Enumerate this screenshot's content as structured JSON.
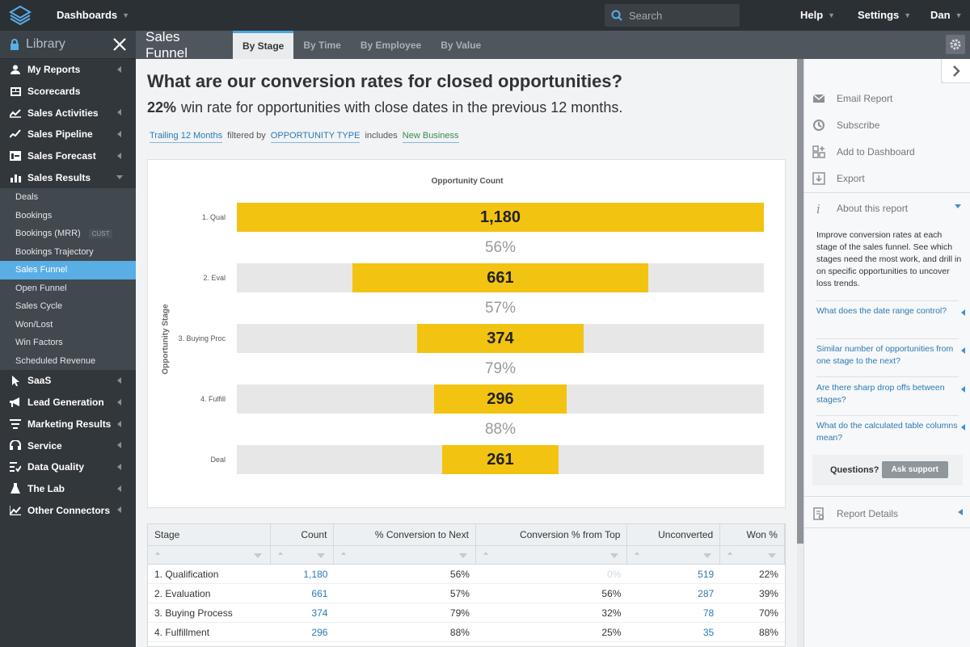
{
  "topbar": {
    "dashboards_label": "Dashboards",
    "search_placeholder": "Search",
    "help_label": "Help",
    "settings_label": "Settings",
    "user_label": "Dan"
  },
  "sidebar": {
    "library_label": "Library",
    "items": [
      {
        "label": "My Reports",
        "icon": "user-icon"
      },
      {
        "label": "Scorecards",
        "icon": "scorecard-icon"
      },
      {
        "label": "Sales Activities",
        "icon": "activity-icon"
      },
      {
        "label": "Sales Pipeline",
        "icon": "pipeline-icon"
      },
      {
        "label": "Sales Forecast",
        "icon": "forecast-icon"
      },
      {
        "label": "Sales Results",
        "icon": "results-icon"
      }
    ],
    "sub_items": [
      {
        "label": "Deals"
      },
      {
        "label": "Bookings"
      },
      {
        "label": "Bookings (MRR)",
        "badge": "CUST"
      },
      {
        "label": "Bookings Trajectory"
      },
      {
        "label": "Sales Funnel",
        "active": true
      },
      {
        "label": "Open Funnel"
      },
      {
        "label": "Sales Cycle"
      },
      {
        "label": "Won/Lost"
      },
      {
        "label": "Win Factors"
      },
      {
        "label": "Scheduled Revenue"
      }
    ],
    "items_bottom": [
      {
        "label": "SaaS",
        "icon": "pointer-icon"
      },
      {
        "label": "Lead Generation",
        "icon": "megaphone-icon"
      },
      {
        "label": "Marketing Results",
        "icon": "filter-icon"
      },
      {
        "label": "Service",
        "icon": "headset-icon"
      },
      {
        "label": "Data Quality",
        "icon": "checklist-icon"
      },
      {
        "label": "The Lab",
        "icon": "flask-icon"
      },
      {
        "label": "Other Connectors",
        "icon": "line-chart-icon"
      }
    ]
  },
  "tabbar": {
    "title": "Sales Funnel",
    "tabs": [
      "By Stage",
      "By Time",
      "By Employee",
      "By Value"
    ],
    "active_tab": "By Stage"
  },
  "report": {
    "question": "What are our conversion rates for closed opportunities?",
    "win_rate": "22%",
    "subtitle": "win rate for opportunities with close dates in the previous 12 months.",
    "filter_period": "Trailing 12 Months",
    "filter_by": "filtered by",
    "filter_field": "OPPORTUNITY TYPE",
    "filter_op": "includes",
    "filter_value": "New Business"
  },
  "chart_data": {
    "type": "bar",
    "title": "Opportunity Count",
    "xlabel": "",
    "ylabel": "Opportunity Stage",
    "categories": [
      "1. Qual",
      "2. Eval",
      "3. Buying Proc",
      "4. Fulfill",
      "Deal"
    ],
    "values": [
      1180,
      661,
      374,
      296,
      261
    ],
    "value_labels": [
      "1,180",
      "661",
      "374",
      "296",
      "261"
    ],
    "conversion_labels": [
      "56%",
      "57%",
      "79%",
      "88%"
    ],
    "xlim": [
      0,
      1180
    ],
    "layout": "centered-funnel",
    "bar_color": "#f2c311",
    "track_color": "#e7e7e7",
    "grid": false
  },
  "table": {
    "columns": [
      "Stage",
      "Count",
      "% Conversion to Next",
      "Conversion % from Top",
      "Unconverted",
      "Won %"
    ],
    "rows": [
      [
        "1. Qualification",
        "1,180",
        "56%",
        "0%",
        "519",
        "22%"
      ],
      [
        "2. Evaluation",
        "661",
        "57%",
        "56%",
        "287",
        "39%"
      ],
      [
        "3. Buying Process",
        "374",
        "79%",
        "32%",
        "78",
        "70%"
      ],
      [
        "4. Fulfillment",
        "296",
        "88%",
        "25%",
        "35",
        "88%"
      ]
    ]
  },
  "right_panel": {
    "actions": [
      "Email Report",
      "Subscribe",
      "Add to Dashboard",
      "Export"
    ],
    "about_label": "About this report",
    "about_text": "Improve conversion rates at each stage of the sales funnel. See which stages need the most work, and drill in on specific opportunities to uncover loss trends.",
    "faqs": [
      "What does the date range control?",
      "Similar number of opportunities from one stage to the next?",
      "Are there sharp drop offs between stages?",
      "What do the calculated table columns mean?"
    ],
    "questions_label": "Questions?",
    "support_button": "Ask support",
    "report_details_label": "Report Details"
  }
}
